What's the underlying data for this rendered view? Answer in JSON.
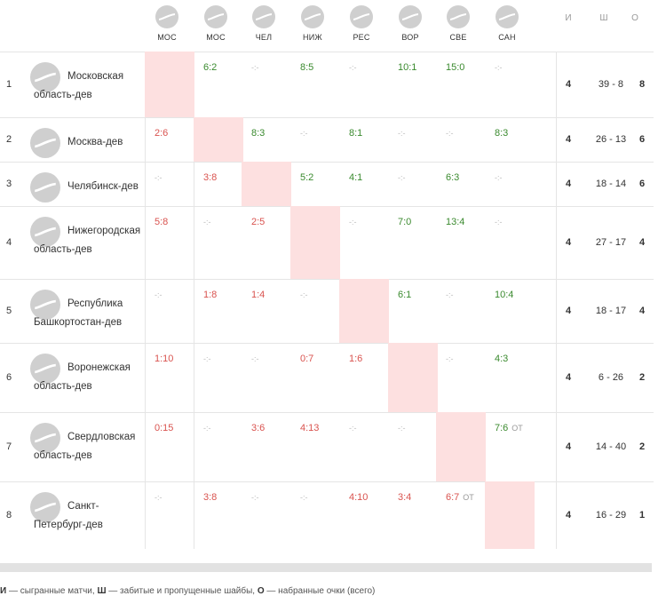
{
  "columns": [
    {
      "abbr": "МОС",
      "icon": "team-logo-placeholder-icon"
    },
    {
      "abbr": "МОС",
      "icon": "team-logo-placeholder-icon"
    },
    {
      "abbr": "ЧЕЛ",
      "icon": "team-logo-placeholder-icon"
    },
    {
      "abbr": "НИЖ",
      "icon": "team-logo-placeholder-icon"
    },
    {
      "abbr": "РЕС",
      "icon": "team-logo-placeholder-icon"
    },
    {
      "abbr": "ВОР",
      "icon": "team-logo-placeholder-icon"
    },
    {
      "abbr": "СВЕ",
      "icon": "team-logo-placeholder-icon"
    },
    {
      "abbr": "САН",
      "icon": "team-logo-placeholder-icon"
    }
  ],
  "stat_headers": {
    "games": "И",
    "goals": "Ш",
    "points": "О"
  },
  "rows": [
    {
      "rank": "1",
      "name": "Московская область-дев",
      "results": [
        {
          "type": "self"
        },
        {
          "type": "win",
          "score": "6:2"
        },
        {
          "type": "none"
        },
        {
          "type": "win",
          "score": "8:5"
        },
        {
          "type": "none"
        },
        {
          "type": "win",
          "score": "10:1"
        },
        {
          "type": "win",
          "score": "15:0"
        },
        {
          "type": "none"
        }
      ],
      "games": "4",
      "goals": "39 - 8",
      "points": "8"
    },
    {
      "rank": "2",
      "name": "Москва-дев",
      "results": [
        {
          "type": "loss",
          "score": "2:6"
        },
        {
          "type": "self"
        },
        {
          "type": "win",
          "score": "8:3"
        },
        {
          "type": "none"
        },
        {
          "type": "win",
          "score": "8:1"
        },
        {
          "type": "none"
        },
        {
          "type": "none"
        },
        {
          "type": "win",
          "score": "8:3"
        }
      ],
      "games": "4",
      "goals": "26 - 13",
      "points": "6"
    },
    {
      "rank": "3",
      "name": "Челябинск-дев",
      "results": [
        {
          "type": "none"
        },
        {
          "type": "loss",
          "score": "3:8"
        },
        {
          "type": "self"
        },
        {
          "type": "win",
          "score": "5:2"
        },
        {
          "type": "win",
          "score": "4:1"
        },
        {
          "type": "none"
        },
        {
          "type": "win",
          "score": "6:3"
        },
        {
          "type": "none"
        }
      ],
      "games": "4",
      "goals": "18 - 14",
      "points": "6"
    },
    {
      "rank": "4",
      "name": "Нижегородская область-дев",
      "results": [
        {
          "type": "loss",
          "score": "5:8"
        },
        {
          "type": "none"
        },
        {
          "type": "loss",
          "score": "2:5"
        },
        {
          "type": "self"
        },
        {
          "type": "none"
        },
        {
          "type": "win",
          "score": "7:0"
        },
        {
          "type": "win",
          "score": "13:4"
        },
        {
          "type": "none"
        }
      ],
      "games": "4",
      "goals": "27 - 17",
      "points": "4"
    },
    {
      "rank": "5",
      "name": "Республика Башкортостан-дев",
      "results": [
        {
          "type": "none"
        },
        {
          "type": "loss",
          "score": "1:8"
        },
        {
          "type": "loss",
          "score": "1:4"
        },
        {
          "type": "none"
        },
        {
          "type": "self"
        },
        {
          "type": "win",
          "score": "6:1"
        },
        {
          "type": "none"
        },
        {
          "type": "win",
          "score": "10:4"
        }
      ],
      "games": "4",
      "goals": "18 - 17",
      "points": "4"
    },
    {
      "rank": "6",
      "name": "Воронежская область-дев",
      "results": [
        {
          "type": "loss",
          "score": "1:10"
        },
        {
          "type": "none"
        },
        {
          "type": "none"
        },
        {
          "type": "loss",
          "score": "0:7"
        },
        {
          "type": "loss",
          "score": "1:6"
        },
        {
          "type": "self"
        },
        {
          "type": "none"
        },
        {
          "type": "win",
          "score": "4:3"
        }
      ],
      "games": "4",
      "goals": "6 - 26",
      "points": "2"
    },
    {
      "rank": "7",
      "name": "Свердловская область-дев",
      "results": [
        {
          "type": "loss",
          "score": "0:15"
        },
        {
          "type": "none"
        },
        {
          "type": "loss",
          "score": "3:6"
        },
        {
          "type": "loss",
          "score": "4:13"
        },
        {
          "type": "none"
        },
        {
          "type": "none"
        },
        {
          "type": "self"
        },
        {
          "type": "win",
          "score": "7:6",
          "ot": "ОТ"
        }
      ],
      "games": "4",
      "goals": "14 - 40",
      "points": "2"
    },
    {
      "rank": "8",
      "name": "Санкт-Петербург-дев",
      "results": [
        {
          "type": "none"
        },
        {
          "type": "loss",
          "score": "3:8"
        },
        {
          "type": "none"
        },
        {
          "type": "none"
        },
        {
          "type": "loss",
          "score": "4:10"
        },
        {
          "type": "loss",
          "score": "3:4"
        },
        {
          "type": "loss",
          "score": "6:7",
          "ot": "ОТ"
        },
        {
          "type": "self"
        }
      ],
      "games": "4",
      "goals": "16 - 29",
      "points": "1"
    }
  ],
  "empty_marker": "-:-",
  "legend": {
    "games_key": "И",
    "games_text": " — сыгранные матчи, ",
    "goals_key": "Ш",
    "goals_text": " — забитые и пропущенные шайбы, ",
    "points_key": "О",
    "points_text": " — набранные очки (всего)"
  },
  "colors": {
    "win": "#3a8a2e",
    "loss": "#d9534f",
    "self": "#fde0e0",
    "icon": "#cfcfcf"
  }
}
